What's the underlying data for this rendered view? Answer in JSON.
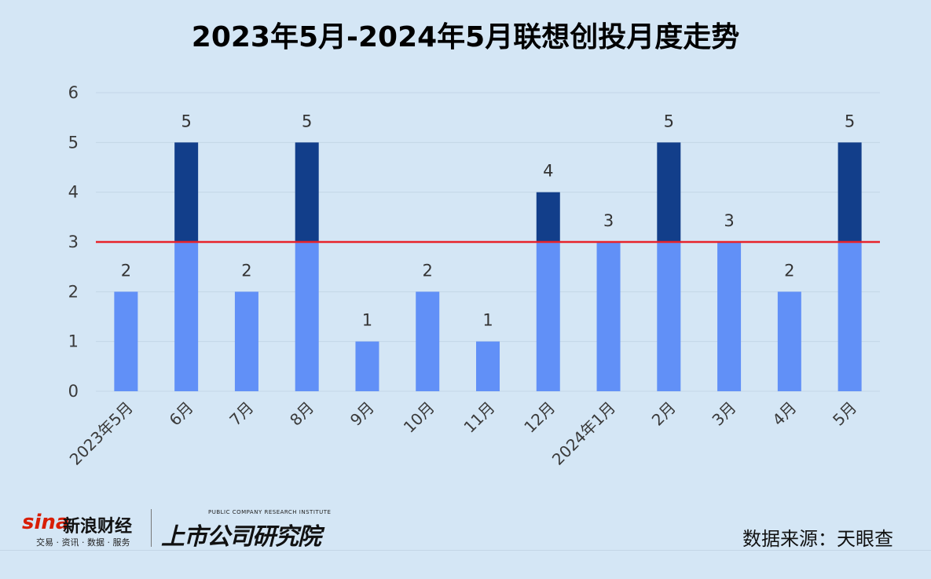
{
  "chart_data": {
    "type": "bar",
    "title": "2023年5月-2024年5月联想创投月度走势",
    "categories": [
      "2023年5月",
      "6月",
      "7月",
      "8月",
      "9月",
      "10月",
      "11月",
      "12月",
      "2024年1月",
      "2月",
      "3月",
      "4月",
      "5月"
    ],
    "values": [
      2,
      5,
      2,
      5,
      1,
      2,
      1,
      4,
      3,
      5,
      3,
      2,
      5
    ],
    "ylim": [
      0,
      6
    ],
    "yticks": [
      0,
      1,
      2,
      3,
      4,
      5,
      6
    ],
    "reference_line": 3,
    "grid": true,
    "legend": "none",
    "colors": {
      "below": "#6190f7",
      "above": "#123e8a",
      "reference": "#e8232a",
      "grid": "#c3d6e6"
    }
  },
  "footer": {
    "sina_logo": "sina",
    "sina_name": "新浪财经",
    "sina_sub": "交易 · 资讯 · 数据 · 服务",
    "research_en": "PUBLIC COMPANY RESEARCH INSTITUTE",
    "research_cn": "上市公司研究院",
    "source": "数据来源：天眼查"
  }
}
